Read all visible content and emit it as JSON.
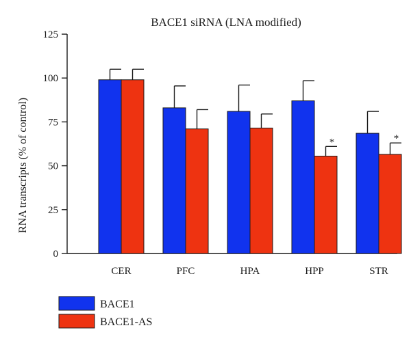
{
  "chart_data": {
    "type": "bar",
    "title": "BACE1 siRNA (LNA modified)",
    "xlabel": "",
    "ylabel": "RNA transcripts (% of control)",
    "ylim": [
      0,
      125
    ],
    "yticks": [
      0,
      25,
      50,
      75,
      100,
      125
    ],
    "categories": [
      "CER",
      "PFC",
      "HPA",
      "HPP",
      "STR"
    ],
    "series": [
      {
        "name": "BACE1",
        "color": "#1133ee",
        "values": [
          99,
          83,
          81,
          87,
          68.5
        ],
        "errors": [
          6,
          12.5,
          15,
          11.5,
          12.5
        ],
        "annotations": [
          "",
          "",
          "",
          "",
          ""
        ]
      },
      {
        "name": "BACE1-AS",
        "color": "#ee3311",
        "values": [
          99,
          71,
          71.5,
          55.5,
          56.5
        ],
        "errors": [
          6,
          11,
          8,
          5.5,
          6.5
        ],
        "annotations": [
          "",
          "",
          "",
          "*",
          "*"
        ]
      }
    ],
    "legend": "bottom-left",
    "grid": false
  }
}
